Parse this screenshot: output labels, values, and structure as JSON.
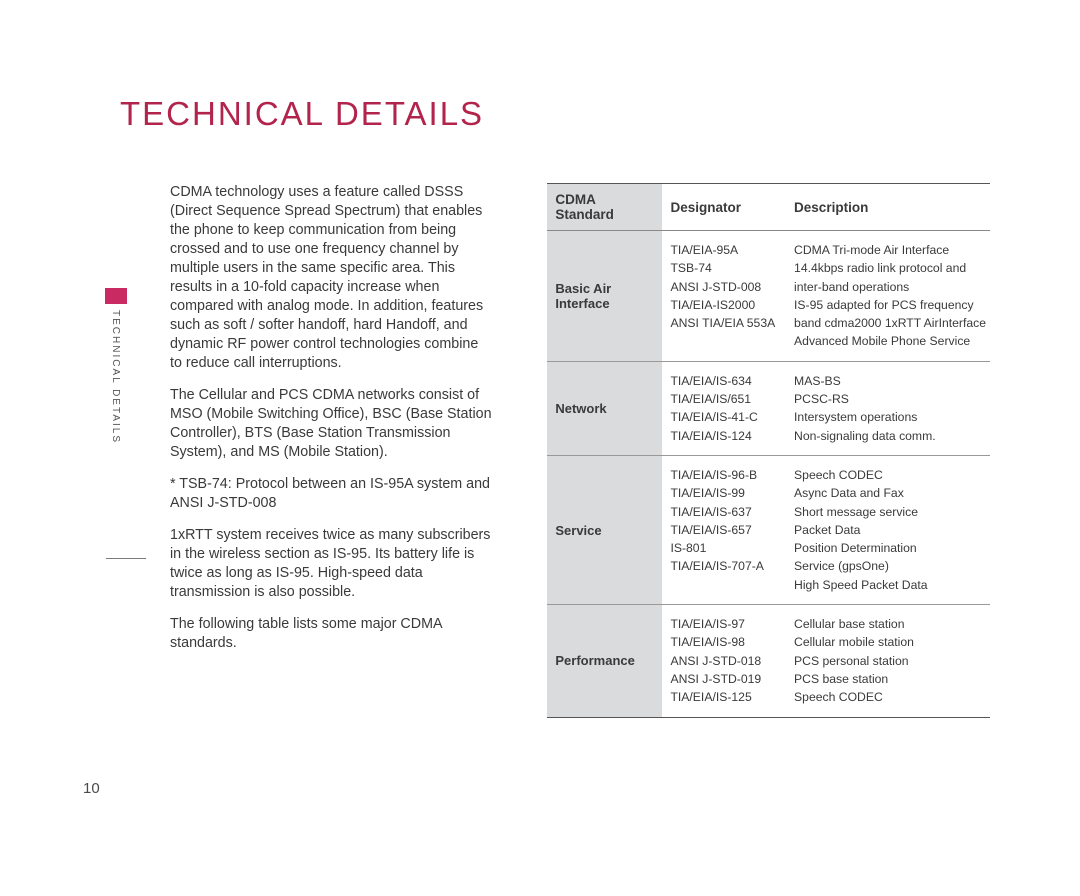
{
  "title": "TECHNICAL DETAILS",
  "sideLabel": "TECHNICAL DETAILS",
  "pageNumber": "10",
  "paragraphs": [
    "CDMA technology uses a feature called DSSS (Direct Sequence Spread Spectrum) that enables the phone to keep communication from being crossed and to use one frequency channel by multiple users in the same specific area. This results in a 10-fold capacity increase when compared with analog mode. In addition, features such as soft / softer handoff, hard Handoff, and dynamic RF power control technologies combine to reduce call interruptions.",
    "The Cellular and PCS CDMA networks consist of MSO (Mobile Switching Office), BSC (Base Station Controller), BTS (Base Station Transmission System), and MS (Mobile Station).",
    "* TSB-74: Protocol between an IS-95A system and ANSI J-STD-008",
    "1xRTT system receives twice as many subscribers in the wireless section as IS-95. Its battery life is twice as long as IS-95. High-speed data transmission is also possible.",
    "The following table lists some major CDMA standards."
  ],
  "table": {
    "headers": {
      "col1": "CDMA Standard",
      "col2": "Designator",
      "col3": "Description"
    },
    "rows": [
      {
        "category": "Basic Air Interface",
        "designators": [
          "TIA/EIA-95A",
          "TSB-74",
          "ANSI J-STD-008",
          "TIA/EIA-IS2000",
          "ANSI TIA/EIA 553A"
        ],
        "descriptions": [
          "CDMA Tri-mode Air Interface",
          "14.4kbps radio link protocol and",
          "inter-band operations",
          "IS-95 adapted for PCS frequency",
          "band cdma2000 1xRTT AirInterface",
          "Advanced Mobile Phone Service"
        ]
      },
      {
        "category": "Network",
        "designators": [
          "TIA/EIA/IS-634",
          "TIA/EIA/IS/651",
          "TIA/EIA/IS-41-C",
          "TIA/EIA/IS-124"
        ],
        "descriptions": [
          "MAS-BS",
          "PCSC-RS",
          "Intersystem operations",
          "Non-signaling data comm."
        ]
      },
      {
        "category": "Service",
        "designators": [
          "TIA/EIA/IS-96-B",
          "TIA/EIA/IS-99",
          "TIA/EIA/IS-637",
          "TIA/EIA/IS-657",
          "IS-801",
          "TIA/EIA/IS-707-A"
        ],
        "descriptions": [
          "Speech CODEC",
          "Async Data and Fax",
          "Short message service",
          "Packet Data",
          "Position Determination",
          "Service (gpsOne)",
          "High Speed Packet Data"
        ]
      },
      {
        "category": "Performance",
        "designators": [
          "TIA/EIA/IS-97",
          "TIA/EIA/IS-98",
          "ANSI J-STD-018",
          "ANSI J-STD-019",
          "TIA/EIA/IS-125"
        ],
        "descriptions": [
          "Cellular base station",
          "Cellular mobile station",
          "PCS personal station",
          "PCS base station",
          "Speech CODEC"
        ]
      }
    ]
  }
}
